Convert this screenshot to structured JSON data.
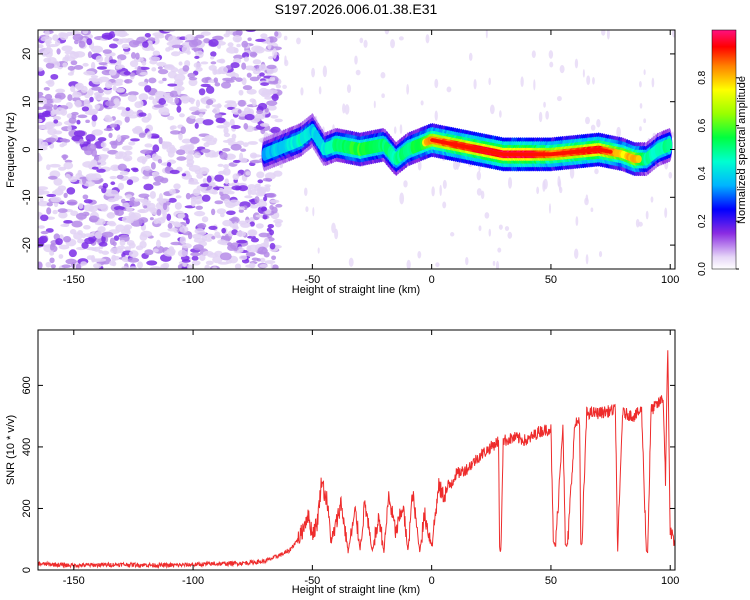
{
  "title": "S197.2026.006.01.38.E31",
  "chart_data": [
    {
      "type": "heatmap",
      "title": "S197.2026.006.01.38.E31",
      "xlabel": "Height of straight line (km)",
      "ylabel": "Frequency (Hz)",
      "xlim": [
        -165,
        102
      ],
      "ylim": [
        -25,
        25
      ],
      "xticks": [
        -150,
        -100,
        -50,
        0,
        50,
        100
      ],
      "yticks": [
        -20,
        -10,
        0,
        10,
        20
      ],
      "noise_region_x": [
        -165,
        -70
      ],
      "ridge": {
        "x": [
          -70,
          -60,
          -55,
          -50,
          -45,
          -40,
          -30,
          -20,
          -15,
          -10,
          -5,
          0,
          10,
          20,
          30,
          40,
          50,
          60,
          70,
          80,
          85,
          90,
          95,
          100
        ],
        "y": [
          -1,
          1,
          2,
          4,
          0,
          1,
          0,
          1,
          -2,
          0,
          1,
          2,
          1,
          0,
          -1,
          -1,
          -1,
          -0.5,
          0,
          -1,
          -2,
          -2,
          0,
          1
        ],
        "amp": [
          0.25,
          0.35,
          0.4,
          0.3,
          0.35,
          0.5,
          0.6,
          0.5,
          0.45,
          0.5,
          0.55,
          0.7,
          0.75,
          0.8,
          0.85,
          0.85,
          0.7,
          0.75,
          0.8,
          0.6,
          0.7,
          0.45,
          0.4,
          0.5
        ]
      },
      "colorbar": {
        "label": "Normalized spectral amplitude",
        "range": [
          0,
          1
        ],
        "ticks": [
          "0.0",
          "0.2",
          "0.4",
          "0.6",
          "0.8"
        ]
      }
    },
    {
      "type": "line",
      "xlabel": "Height of straight line (km)",
      "ylabel": "SNR (10 * v/v)",
      "xlim": [
        -165,
        102
      ],
      "ylim": [
        0,
        780
      ],
      "xticks": [
        -150,
        -100,
        -50,
        0,
        50,
        100
      ],
      "yticks": [
        0,
        200,
        400,
        600
      ],
      "series": [
        {
          "name": "SNR",
          "color": "#ee2c2c",
          "x": [
            -165,
            -150,
            -130,
            -110,
            -90,
            -80,
            -70,
            -60,
            -55,
            -52,
            -50,
            -48,
            -46,
            -45,
            -44,
            -42,
            -40,
            -38,
            -35,
            -32,
            -30,
            -28,
            -25,
            -22,
            -20,
            -18,
            -15,
            -12,
            -10,
            -8,
            -5,
            -3,
            0,
            3,
            5,
            10,
            15,
            20,
            25,
            28,
            28.5,
            29,
            30,
            35,
            40,
            45,
            50,
            51,
            52,
            55,
            56,
            57,
            60,
            62,
            62.5,
            63,
            65,
            70,
            77,
            78,
            80,
            85,
            88,
            90,
            90.5,
            92,
            95,
            97,
            98,
            99,
            100,
            102
          ],
          "y": [
            20,
            15,
            18,
            15,
            20,
            22,
            28,
            60,
            110,
            180,
            120,
            150,
            300,
            250,
            230,
            90,
            150,
            220,
            60,
            190,
            70,
            220,
            60,
            170,
            60,
            240,
            120,
            210,
            60,
            250,
            60,
            180,
            80,
            270,
            240,
            310,
            330,
            370,
            400,
            420,
            70,
            60,
            420,
            430,
            420,
            450,
            460,
            90,
            80,
            480,
            80,
            80,
            470,
            490,
            80,
            80,
            510,
            510,
            520,
            60,
            510,
            500,
            520,
            60,
            60,
            520,
            540,
            560,
            300,
            720,
            120,
            100
          ]
        }
      ]
    }
  ]
}
